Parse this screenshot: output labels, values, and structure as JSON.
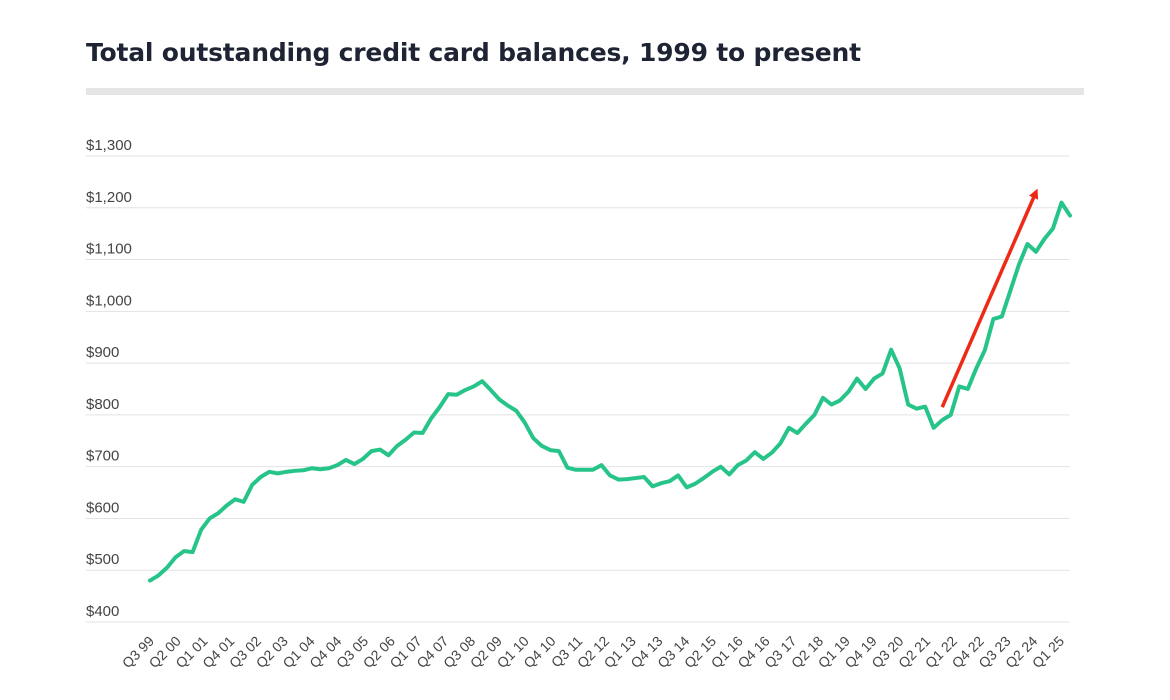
{
  "title": "Total outstanding credit card balances, 1999 to present",
  "colors": {
    "line": "#27c489",
    "arrow": "#ee2a16",
    "grid": "#e3e3e3",
    "rule": "#e5e5e5"
  },
  "chart_data": {
    "type": "line",
    "title": "Total outstanding credit card balances, 1999 to present",
    "xlabel": "",
    "ylabel": "",
    "ylim": [
      400,
      1300
    ],
    "yticks": [
      400,
      500,
      600,
      700,
      800,
      900,
      1000,
      1100,
      1200,
      1300
    ],
    "ytick_labels": [
      "$400",
      "$500",
      "$600",
      "$700",
      "$800",
      "$900",
      "$1,000",
      "$1,100",
      "$1,200",
      "$1,300"
    ],
    "xtick_labels": [
      "Q3 99",
      "Q2 00",
      "Q1 01",
      "Q4 01",
      "Q3 02",
      "Q2 03",
      "Q1 04",
      "Q4 04",
      "Q3 05",
      "Q2 06",
      "Q1 07",
      "Q4 07",
      "Q3 08",
      "Q2 09",
      "Q1 10",
      "Q4 10",
      "Q3 11",
      "Q2 12",
      "Q1 13",
      "Q4 13",
      "Q3 14",
      "Q2 15",
      "Q1 16",
      "Q4 16",
      "Q3 17",
      "Q2 18",
      "Q1 19",
      "Q4 19",
      "Q3 20",
      "Q2 21",
      "Q1 22",
      "Q4 22",
      "Q3 23",
      "Q2 24",
      "Q1 25"
    ],
    "grid": true,
    "legend": "none",
    "series": [
      {
        "values": [
          480,
          490,
          505,
          525,
          537,
          535,
          578,
          600,
          610,
          625,
          637,
          632,
          665,
          680,
          690,
          687,
          690,
          692,
          693,
          697,
          695,
          697,
          703,
          713,
          705,
          715,
          730,
          733,
          722,
          740,
          752,
          766,
          765,
          793,
          815,
          840,
          839,
          848,
          855,
          865,
          848,
          830,
          818,
          808,
          785,
          755,
          740,
          732,
          730,
          698,
          694,
          694,
          694,
          703,
          683,
          675,
          676,
          678,
          680,
          662,
          668,
          672,
          683,
          660,
          667,
          678,
          690,
          700,
          685,
          703,
          712,
          728,
          715,
          727,
          745,
          775,
          765,
          783,
          800,
          833,
          820,
          828,
          845,
          870,
          850,
          870,
          880,
          926,
          890,
          820,
          812,
          816,
          775,
          790,
          800,
          855,
          850,
          890,
          925,
          985,
          990,
          1040,
          1090,
          1130,
          1115,
          1140,
          1160,
          1210,
          1185
        ]
      }
    ],
    "annotations": [
      {
        "type": "arrow",
        "from_index": 93,
        "from_value": 815,
        "to_index": 104,
        "to_value": 1230
      }
    ]
  }
}
